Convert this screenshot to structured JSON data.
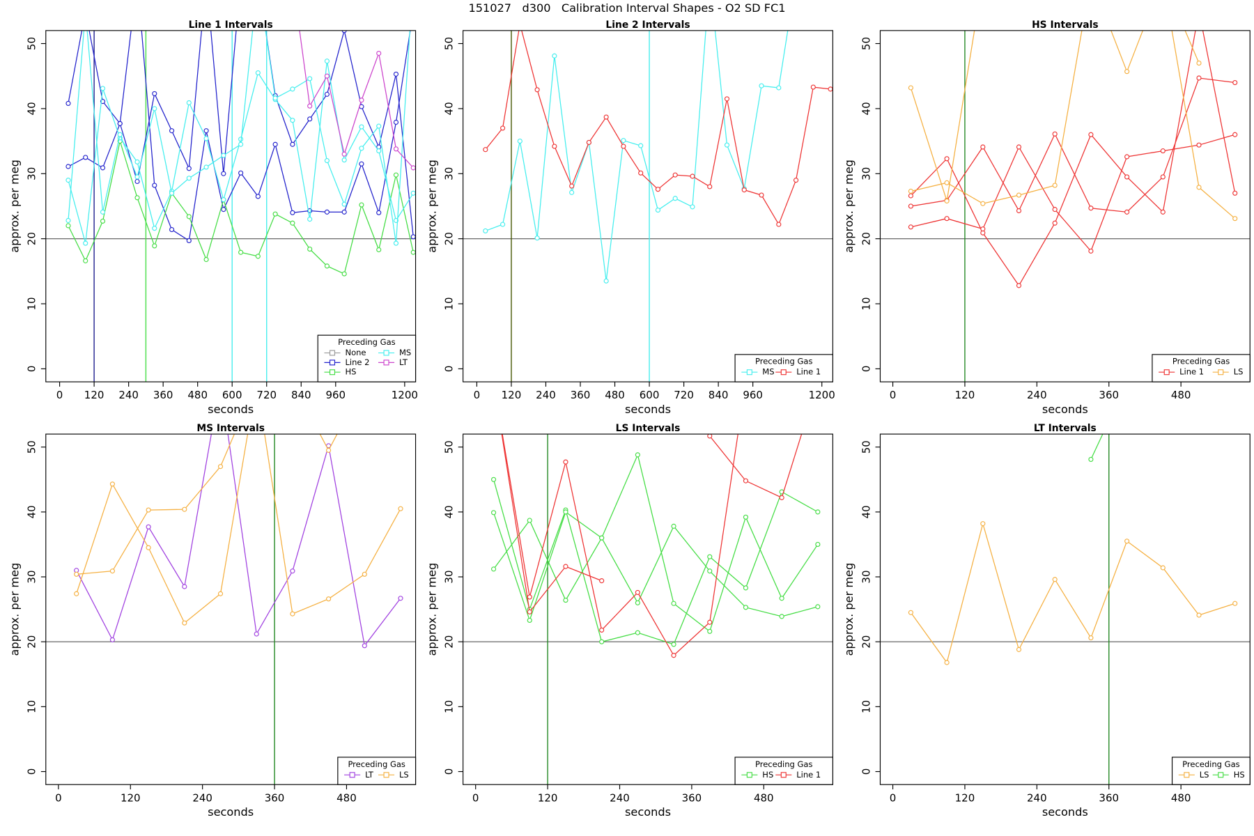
{
  "title": "151027   d300   Calibration Interval Shapes - O2 SD FC1",
  "chart_data": [
    {
      "type": "line",
      "title": "Line 1 Intervals",
      "xlabel": "seconds",
      "ylabel": "approx. per meg",
      "x": [
        30,
        90,
        150,
        210,
        270,
        330,
        390,
        450,
        510,
        570,
        630,
        690,
        750,
        810,
        870,
        930,
        990,
        1050,
        1110,
        1170,
        1230
      ],
      "xlim": [
        -48,
        1238
      ],
      "ylim": [
        -2,
        52
      ],
      "xticks": [
        0,
        120,
        240,
        360,
        480,
        600,
        720,
        840,
        960,
        1200
      ],
      "yticks": [
        0,
        10,
        20,
        30,
        40,
        50
      ],
      "hline": 20,
      "vlines": [
        {
          "x": 120,
          "color": "#1a1a8c"
        },
        {
          "x": 300,
          "color": "#44dd44"
        },
        {
          "x": 600,
          "color": "#44eeee"
        },
        {
          "x": 720,
          "color": "#44eeee"
        }
      ],
      "legend": {
        "title": "Preceding Gas",
        "position": "bottom-right",
        "ncol": 2
      },
      "series": [
        {
          "name": "None",
          "color": "#999999",
          "lines": []
        },
        {
          "name": "Line 2",
          "color": "#2222cc",
          "lines": [
            [
              40.8,
              55,
              41.1,
              37.7,
              28.8,
              42.3,
              36.6,
              30.8,
              60,
              30.0,
              60,
              60,
              42.0,
              34.5,
              38.4,
              42.2,
              52,
              40.3,
              34.1,
              45.3,
              20.3
            ],
            [
              31.1,
              32.5,
              30.9,
              37.7,
              60,
              28.2,
              21.4,
              19.7,
              36.6,
              24.5,
              30.1,
              26.5,
              34.5,
              24.0,
              24.3,
              24.1,
              24.1,
              31.5,
              24.0,
              37.9,
              55
            ]
          ]
        },
        {
          "name": "HS",
          "color": "#44dd44",
          "lines": [
            [
              22.0,
              16.6,
              22.7,
              35.0,
              26.3,
              18.9,
              27.0,
              23.4,
              16.8,
              26.0,
              17.9,
              17.3,
              23.8,
              22.4,
              18.4,
              15.8,
              14.6,
              25.2,
              18.3,
              29.8,
              17.9
            ]
          ]
        },
        {
          "name": "MS",
          "color": "#44eeee",
          "lines": [
            [
              29.0,
              19.3,
              43.1,
              35.5,
              31.8,
              21.6,
              27.3,
              40.9,
              35.4,
              26.0,
              35.3,
              45.5,
              41.4,
              38.2,
              23.0,
              47.3,
              32.1,
              37.2,
              33.5,
              22.8,
              27.0
            ],
            [
              22.8,
              55,
              24.1,
              36.0,
              29.5,
              40.0,
              27.0,
              29.3,
              31.0,
              32.8,
              34.5,
              60,
              41.6,
              43.0,
              44.6,
              32.0,
              25.3,
              33.9,
              37.3,
              19.3,
              60
            ]
          ]
        },
        {
          "name": "LT",
          "color": "#cc44cc",
          "lines": [
            [
              null,
              null,
              null,
              null,
              null,
              null,
              null,
              null,
              null,
              null,
              null,
              null,
              null,
              60,
              40.4,
              45.0,
              33.0,
              41.3,
              48.5,
              33.8,
              30.9
            ]
          ]
        }
      ]
    },
    {
      "type": "line",
      "title": "Line 2 Intervals",
      "xlabel": "seconds",
      "ylabel": "approx. per meg",
      "x": [
        30,
        90,
        150,
        210,
        270,
        330,
        390,
        450,
        510,
        570,
        630,
        690,
        750,
        810,
        870,
        930,
        990,
        1050,
        1110,
        1170,
        1230
      ],
      "xlim": [
        -48,
        1238
      ],
      "ylim": [
        -2,
        52
      ],
      "xticks": [
        0,
        120,
        240,
        360,
        480,
        600,
        720,
        840,
        960,
        1200
      ],
      "yticks": [
        0,
        10,
        20,
        30,
        40,
        50
      ],
      "hline": 20,
      "vlines": [
        {
          "x": 120,
          "color": "#445500"
        },
        {
          "x": 600,
          "color": "#44eeee"
        }
      ],
      "legend": {
        "title": "Preceding Gas",
        "position": "bottom-right",
        "ncol": 2
      },
      "series": [
        {
          "name": "MS",
          "color": "#44eeee",
          "lines": [
            [
              21.2,
              22.2,
              35.0,
              20.1,
              48.1,
              27.1,
              34.8,
              13.5,
              35.1,
              34.3,
              24.4,
              26.2,
              24.9,
              60,
              34.4,
              27.7,
              43.5,
              43.2,
              60,
              null,
              null
            ]
          ]
        },
        {
          "name": "Line 1",
          "color": "#ee3333",
          "lines": [
            [
              33.7,
              37.0,
              53,
              42.9,
              34.2,
              28.1,
              34.8,
              38.7,
              34.2,
              30.1,
              27.6,
              29.8,
              29.6,
              28.0,
              41.5,
              27.5,
              26.7,
              22.2,
              29.0,
              43.3,
              43.0
            ]
          ]
        }
      ]
    },
    {
      "type": "line",
      "title": "HS Intervals",
      "xlabel": "seconds",
      "ylabel": "approx. per meg",
      "x": [
        30,
        90,
        150,
        210,
        270,
        330,
        390,
        450,
        510,
        570
      ],
      "xlim": [
        -21,
        595
      ],
      "ylim": [
        -2,
        52
      ],
      "xticks": [
        0,
        120,
        240,
        360,
        480
      ],
      "yticks": [
        0,
        10,
        20,
        30,
        40,
        50
      ],
      "hline": 20,
      "vlines": [
        {
          "x": 120,
          "color": "#228822"
        }
      ],
      "legend": {
        "title": "Preceding Gas",
        "position": "bottom-right",
        "ncol": 2
      },
      "series": [
        {
          "name": "Line 1",
          "color": "#ee3333",
          "lines": [
            [
              26.6,
              32.3,
              20.9,
              12.8,
              22.4,
              36.0,
              29.5,
              24.1,
              55,
              27.0
            ],
            [
              25.0,
              25.9,
              34.1,
              24.3,
              36.1,
              24.7,
              24.1,
              29.5,
              44.7,
              44.0
            ],
            [
              21.8,
              23.1,
              21.5,
              34.1,
              24.5,
              18.1,
              32.6,
              33.5,
              34.4,
              36.0
            ]
          ]
        },
        {
          "name": "LS",
          "color": "#f5b041",
          "lines": [
            [
              43.2,
              25.8,
              60,
              null,
              null,
              null,
              null,
              null,
              null,
              null
            ],
            [
              27.3,
              28.6,
              25.4,
              26.7,
              28.2,
              60,
              60,
              null,
              null,
              null
            ],
            [
              null,
              null,
              null,
              null,
              null,
              60,
              45.7,
              60,
              47.0,
              null
            ],
            [
              null,
              null,
              null,
              null,
              null,
              null,
              null,
              60,
              27.9,
              23.1
            ]
          ]
        }
      ]
    },
    {
      "type": "line",
      "title": "MS Intervals",
      "xlabel": "seconds",
      "ylabel": "approx. per meg",
      "x": [
        30,
        90,
        150,
        210,
        270,
        330,
        390,
        450,
        510,
        570
      ],
      "xlim": [
        -21,
        595
      ],
      "ylim": [
        -2,
        52
      ],
      "xticks": [
        0,
        120,
        240,
        360,
        480
      ],
      "yticks": [
        0,
        10,
        20,
        30,
        40,
        50
      ],
      "hline": 20,
      "vlines": [
        {
          "x": 360,
          "color": "#228822"
        }
      ],
      "legend": {
        "title": "Preceding Gas",
        "position": "bottom-right",
        "ncol": 2
      },
      "series": [
        {
          "name": "LT",
          "color": "#a040e0",
          "lines": [
            [
              31.0,
              20.3,
              37.7,
              28.5,
              60,
              21.2,
              30.9,
              50.2,
              19.4,
              26.7
            ]
          ]
        },
        {
          "name": "LS",
          "color": "#f5b041",
          "lines": [
            [
              30.4,
              30.9,
              40.3,
              40.4,
              47.0,
              60,
              60,
              49.5,
              60,
              null
            ],
            [
              27.4,
              44.3,
              34.5,
              22.9,
              27.4,
              60,
              24.3,
              26.6,
              30.4,
              40.5
            ]
          ]
        }
      ]
    },
    {
      "type": "line",
      "title": "LS Intervals",
      "xlabel": "seconds",
      "ylabel": "approx. per meg",
      "x": [
        30,
        90,
        150,
        210,
        270,
        330,
        390,
        450,
        510,
        570
      ],
      "xlim": [
        -21,
        595
      ],
      "ylim": [
        -2,
        52
      ],
      "xticks": [
        0,
        120,
        240,
        360,
        480
      ],
      "yticks": [
        0,
        10,
        20,
        30,
        40,
        50
      ],
      "hline": 20,
      "vlines": [
        {
          "x": 120,
          "color": "#228822"
        }
      ],
      "legend": {
        "title": "Preceding Gas",
        "position": "bottom-right",
        "ncol": 2
      },
      "series": [
        {
          "name": "HS",
          "color": "#44dd44",
          "lines": [
            [
              45.0,
              25.0,
              40.3,
              20.0,
              21.4,
              19.6,
              33.1,
              28.3,
              43.1,
              40.0
            ],
            [
              39.9,
              23.3,
              40.0,
              36.0,
              48.8,
              25.9,
              21.6,
              39.2,
              26.7,
              35.0
            ],
            [
              31.2,
              38.7,
              26.4,
              36.0,
              26.0,
              37.8,
              30.9,
              25.3,
              23.9,
              25.4
            ]
          ]
        },
        {
          "name": "Line 1",
          "color": "#ee3333",
          "lines": [
            [
              60,
              26.9,
              47.7,
              21.8,
              27.6,
              17.9,
              23.0,
              60,
              null,
              null
            ],
            [
              60,
              24.6,
              31.6,
              29.4,
              null,
              null,
              null,
              null,
              null,
              null
            ],
            [
              null,
              null,
              null,
              null,
              null,
              null,
              51.7,
              44.8,
              42.2,
              60
            ]
          ]
        }
      ]
    },
    {
      "type": "line",
      "title": "LT Intervals",
      "xlabel": "seconds",
      "ylabel": "approx. per meg",
      "x": [
        30,
        90,
        150,
        210,
        270,
        330,
        390,
        450,
        510,
        570
      ],
      "xlim": [
        -21,
        595
      ],
      "ylim": [
        -2,
        52
      ],
      "xticks": [
        0,
        120,
        240,
        360,
        480
      ],
      "yticks": [
        0,
        10,
        20,
        30,
        40,
        50
      ],
      "hline": 20,
      "vlines": [
        {
          "x": 360,
          "color": "#228822"
        }
      ],
      "legend": {
        "title": "Preceding Gas",
        "position": "bottom-right",
        "ncol": 2
      },
      "series": [
        {
          "name": "LS",
          "color": "#f5b041",
          "lines": [
            [
              24.5,
              16.8,
              38.2,
              18.8,
              29.6,
              20.6,
              35.5,
              31.4,
              24.1,
              25.9
            ]
          ]
        },
        {
          "name": "HS",
          "color": "#44dd44",
          "lines": [
            [
              null,
              null,
              null,
              null,
              null,
              48.1,
              60,
              null,
              null,
              null
            ]
          ]
        }
      ]
    }
  ]
}
